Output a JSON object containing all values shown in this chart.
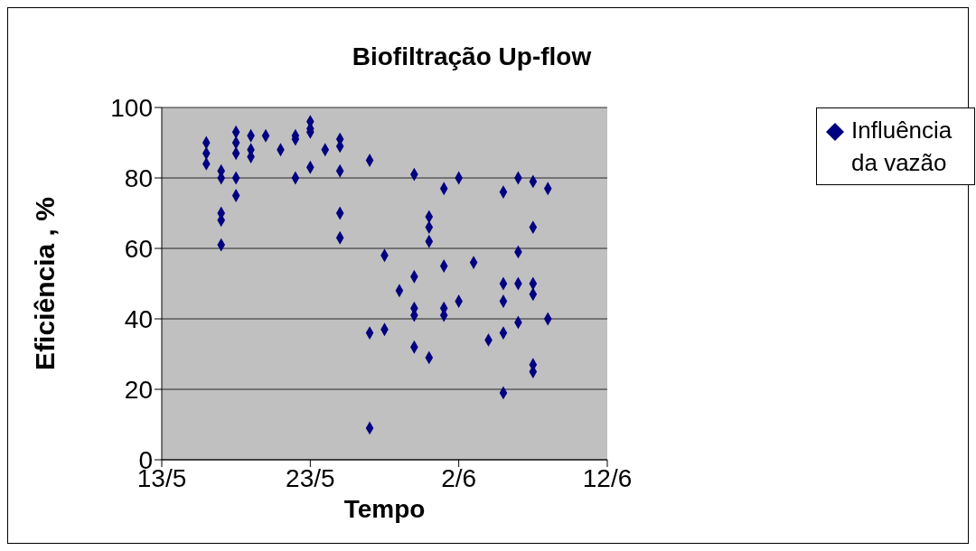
{
  "chart_data": {
    "type": "scatter",
    "title": "Biofiltração Up-flow",
    "xlabel": "Tempo",
    "ylabel": "Eficiência , %",
    "series": [
      {
        "name": "Influência da vazão",
        "color": "#000080",
        "x": [
          "--05-16",
          "--05-16",
          "--05-16",
          "--05-17",
          "--05-17",
          "--05-17",
          "--05-17",
          "--05-17",
          "--05-18",
          "--05-18",
          "--05-18",
          "--05-18",
          "--05-18",
          "--05-19",
          "--05-19",
          "--05-19",
          "--05-20",
          "--05-21",
          "--05-22",
          "--05-22",
          "--05-22",
          "--05-23",
          "--05-23",
          "--05-23",
          "--05-23",
          "--05-24",
          "--05-25",
          "--05-25",
          "--05-25",
          "--05-25",
          "--05-25",
          "--05-27",
          "--05-27",
          "--05-27",
          "--05-28",
          "--05-28",
          "--05-29",
          "--05-30",
          "--05-30",
          "--05-30",
          "--05-30",
          "--05-30",
          "--05-31",
          "--05-31",
          "--05-31",
          "--05-31",
          "--06-01",
          "--06-01",
          "--06-01",
          "--06-01",
          "--06-02",
          "--06-02",
          "--06-03",
          "--06-04",
          "--06-05",
          "--06-05",
          "--06-05",
          "--06-05",
          "--06-05",
          "--06-06",
          "--06-06",
          "--06-06",
          "--06-06",
          "--06-07",
          "--06-07",
          "--06-07",
          "--06-07",
          "--06-07",
          "--06-07",
          "--06-08",
          "--06-08"
        ],
        "values": [
          90,
          87,
          84,
          82,
          80,
          70,
          68,
          61,
          93,
          90,
          87,
          80,
          75,
          92,
          88,
          86,
          92,
          88,
          92,
          91,
          80,
          96,
          94,
          93,
          83,
          88,
          91,
          89,
          82,
          70,
          63,
          85,
          36,
          9,
          58,
          37,
          48,
          81,
          52,
          43,
          41,
          32,
          69,
          66,
          62,
          29,
          77,
          55,
          43,
          41,
          80,
          45,
          56,
          34,
          76,
          50,
          45,
          36,
          19,
          80,
          59,
          50,
          39,
          79,
          66,
          50,
          47,
          27,
          25,
          77,
          40
        ]
      }
    ],
    "xlim": [
      "--05-13",
      "--06-12"
    ],
    "xticks": [
      {
        "value": "--05-13",
        "label": "13/5"
      },
      {
        "value": "--05-23",
        "label": "23/5"
      },
      {
        "value": "--06-02",
        "label": "2/6"
      },
      {
        "value": "--06-12",
        "label": "12/6"
      }
    ],
    "ylim": [
      0,
      100
    ],
    "yticks": [
      0,
      20,
      40,
      60,
      80,
      100
    ],
    "grid": "y",
    "legend": "right",
    "marker": "diamond"
  }
}
